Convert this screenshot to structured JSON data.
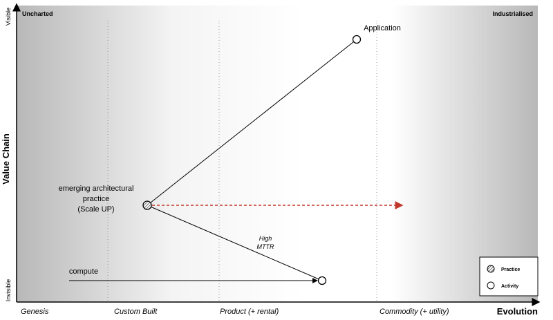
{
  "axes": {
    "y_title": "Value Chain",
    "y_top": "Visible",
    "y_bottom": "Invisible",
    "x_title": "Evolution",
    "x_stages": [
      "Genesis",
      "Custom Built",
      "Product (+ rental)",
      "Commodity (+ utility)"
    ]
  },
  "corners": {
    "left": "Uncharted",
    "right": "Industrialised"
  },
  "nodes": [
    {
      "label": "Application"
    },
    {
      "label_lines": [
        "emerging architectural",
        "practice",
        "(Scale UP)"
      ]
    },
    {
      "label": "compute"
    }
  ],
  "edge_label": [
    "High",
    "MTTR"
  ],
  "legend": {
    "items": [
      "Practice",
      "Activity"
    ]
  }
}
